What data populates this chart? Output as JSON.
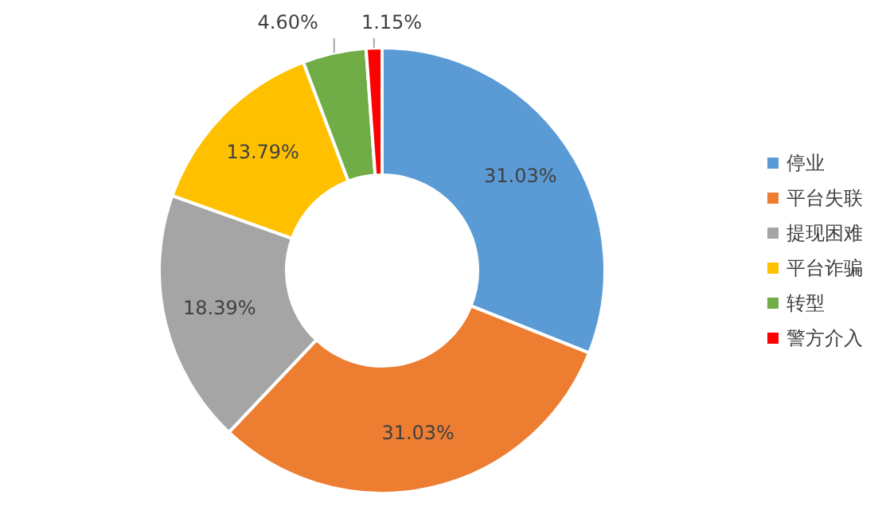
{
  "chart_data": {
    "type": "donut",
    "categories": [
      "停业",
      "平台失联",
      "提现困难",
      "平台诈骗",
      "转型",
      "警方介入"
    ],
    "values": [
      31.03,
      31.03,
      18.39,
      13.79,
      4.6,
      1.15
    ],
    "colors": [
      "#5b9bd5",
      "#ed7d31",
      "#a5a5a5",
      "#ffc000",
      "#70ad47",
      "#ff0000"
    ],
    "value_labels": [
      "31.03%",
      "31.03%",
      "18.39%",
      "13.79%",
      "4.60%",
      "1.15%"
    ],
    "legend": "right"
  }
}
